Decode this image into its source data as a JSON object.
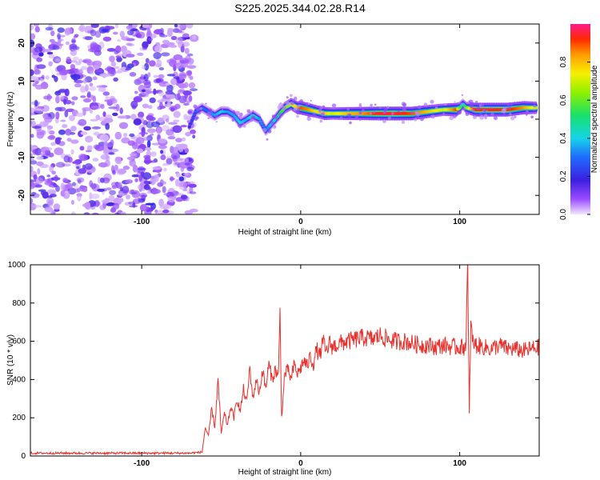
{
  "title": "S225.2025.344.02.28.R14",
  "chart_data": [
    {
      "type": "heatmap",
      "title": "S225.2025.344.02.28.R14",
      "xlabel": "Height of straight line (km)",
      "ylabel": "Frequency (Hz)",
      "xlim": [
        -170,
        150
      ],
      "ylim": [
        -25,
        25
      ],
      "xticks": [
        -100,
        0,
        100
      ],
      "yticks": [
        -20,
        -10,
        0,
        10,
        20
      ],
      "noise_region_x": [
        -170,
        -70
      ],
      "ridge": {
        "x": [
          -70,
          -66,
          -62,
          -58,
          -54,
          -50,
          -46,
          -42,
          -38,
          -34,
          -30,
          -26,
          -22,
          -18,
          -14,
          -10,
          -6,
          -2,
          0,
          5,
          10,
          15,
          20,
          30,
          40,
          50,
          60,
          70,
          80,
          90,
          98,
          100,
          102,
          104,
          110,
          120,
          130,
          140,
          148
        ],
        "y": [
          -2,
          2,
          3,
          2,
          1,
          2,
          2,
          1,
          -1,
          0,
          1,
          0,
          -3,
          -1,
          1,
          3,
          4,
          3,
          3,
          2.5,
          2,
          1.5,
          1.5,
          1.5,
          1.5,
          1.5,
          1.5,
          1.5,
          2,
          2.5,
          2.5,
          3,
          4,
          3,
          2.5,
          2.5,
          2.5,
          3,
          3
        ],
        "amplitude": [
          0.2,
          0.3,
          0.3,
          0.3,
          0.35,
          0.4,
          0.35,
          0.35,
          0.4,
          0.35,
          0.45,
          0.35,
          0.3,
          0.4,
          0.5,
          0.6,
          0.7,
          0.8,
          0.9,
          0.85,
          0.75,
          0.8,
          0.7,
          0.8,
          0.85,
          0.95,
          0.95,
          0.9,
          0.8,
          0.7,
          0.9,
          0.6,
          0.4,
          0.6,
          0.95,
          0.95,
          0.95,
          0.85,
          0.7
        ]
      },
      "colorbar": {
        "label": "Normalized spectral amplitude",
        "range": [
          0,
          1
        ],
        "ticks": [
          "0.0",
          "0.2",
          "0.4",
          "0.6",
          "0.8"
        ],
        "tick_values": [
          0,
          0.2,
          0.4,
          0.6,
          0.8
        ]
      }
    },
    {
      "type": "line",
      "xlabel": "Height of straight line (km)",
      "ylabel": "SNR (10 * v/v)",
      "xlim": [
        -170,
        150
      ],
      "ylim": [
        0,
        1000
      ],
      "xticks": [
        -100,
        0,
        100
      ],
      "yticks": [
        0,
        200,
        400,
        600,
        800,
        1000
      ],
      "color": "#e8302c",
      "series": [
        {
          "name": "SNR",
          "x": [
            -170,
            -150,
            -130,
            -110,
            -90,
            -70,
            -62,
            -60,
            -58,
            -56,
            -54,
            -52,
            -50,
            -48,
            -46,
            -44,
            -42,
            -40,
            -38,
            -36,
            -34,
            -32,
            -30,
            -28,
            -26,
            -24,
            -22,
            -20,
            -18,
            -16,
            -14,
            -13,
            -12,
            -10,
            -8,
            -6,
            -4,
            -2,
            0,
            2,
            4,
            6,
            8,
            10,
            12,
            14,
            16,
            18,
            20,
            25,
            30,
            35,
            40,
            45,
            50,
            55,
            60,
            65,
            70,
            75,
            80,
            85,
            90,
            95,
            100,
            103,
            104,
            105,
            106,
            107,
            108,
            109,
            110,
            115,
            120,
            125,
            130,
            135,
            140,
            145,
            150
          ],
          "y": [
            15,
            15,
            15,
            15,
            15,
            15,
            20,
            150,
            100,
            250,
            150,
            400,
            120,
            220,
            160,
            260,
            200,
            300,
            230,
            350,
            280,
            460,
            300,
            400,
            330,
            450,
            350,
            480,
            400,
            450,
            420,
            750,
            200,
            430,
            450,
            400,
            480,
            430,
            460,
            500,
            470,
            520,
            480,
            560,
            520,
            600,
            540,
            590,
            570,
            590,
            600,
            610,
            620,
            610,
            630,
            610,
            600,
            600,
            590,
            580,
            580,
            570,
            580,
            570,
            570,
            570,
            600,
            1000,
            220,
            700,
            600,
            590,
            580,
            570,
            560,
            580,
            560,
            560,
            550,
            560,
            570
          ]
        }
      ]
    }
  ]
}
